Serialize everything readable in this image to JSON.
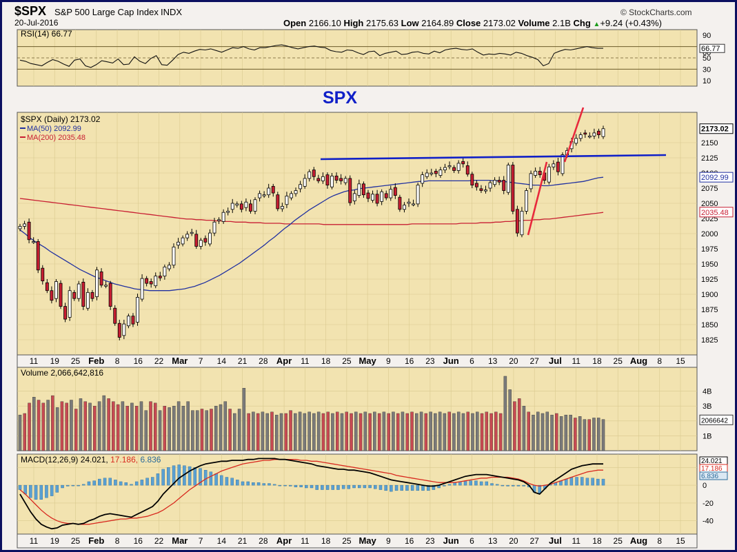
{
  "header": {
    "symbol": "$SPX",
    "name": "S&P 500 Large Cap Index",
    "exchange": "INDX",
    "date": "20-Jul-2016",
    "brand": "© StockCharts.com",
    "open_label": "Open",
    "open": "2166.10",
    "high_label": "High",
    "high": "2175.63",
    "low_label": "Low",
    "low": "2164.89",
    "close_label": "Close",
    "close": "2173.02",
    "volume_label": "Volume",
    "volume": "2.1B",
    "chg_label": "Chg",
    "chg": "+9.24 (+0.43%)",
    "chg_arrow": "▲"
  },
  "annotation": "SPX",
  "colors": {
    "panel_bg": "#f2e3b0",
    "outer_bg": "#f4f1ee",
    "frame": "#0c1060",
    "up": "#ffffff",
    "down": "#c81e32",
    "ma50": "#2030a0",
    "ma200": "#c81e32",
    "trendline": "#1020c8",
    "marker": "#e8283c",
    "vol_up": "#7a7a7a",
    "vol_down": "#c84a52",
    "hist": "#5aa0d2",
    "macd": "#000000",
    "signal": "#d8281e"
  },
  "x_ticks": [
    "11",
    "19",
    "25",
    "Feb",
    "8",
    "16",
    "22",
    "Mar",
    "7",
    "14",
    "21",
    "28",
    "Apr",
    "11",
    "18",
    "25",
    "May",
    "9",
    "16",
    "23",
    "Jun",
    "6",
    "13",
    "20",
    "27",
    "Jul",
    "11",
    "18",
    "25",
    "Aug",
    "8",
    "15"
  ],
  "chart_data": [
    {
      "type": "line",
      "title": "RSI(14) 66.77",
      "ylim": [
        0,
        100
      ],
      "y_ticks": [
        90,
        70,
        60,
        50,
        30,
        10
      ],
      "reference_lines": [
        70,
        50,
        30
      ],
      "last_value_label": "66.77",
      "values": [
        46,
        44,
        40,
        38,
        36,
        42,
        47,
        44,
        39,
        35,
        46,
        48,
        36,
        33,
        38,
        45,
        43,
        41,
        48,
        38,
        39,
        52,
        44,
        40,
        49,
        54,
        38,
        37,
        46,
        56,
        60,
        58,
        62,
        65,
        64,
        66,
        63,
        60,
        64,
        68,
        67,
        70,
        66,
        64,
        68,
        68,
        70,
        72,
        73,
        71,
        68,
        66,
        68,
        70,
        71,
        69,
        68,
        63,
        61,
        60,
        64,
        63,
        59,
        56,
        61,
        62,
        54,
        58,
        60,
        62,
        56,
        57,
        60,
        61,
        58,
        57,
        62,
        59,
        64,
        66,
        67,
        65,
        64,
        66,
        60,
        55,
        57,
        56,
        58,
        57,
        55,
        60,
        58,
        54,
        51,
        47,
        36,
        40,
        58,
        62,
        65,
        64,
        66,
        68,
        70,
        68,
        67,
        67
      ]
    },
    {
      "type": "candlestick",
      "title": "$SPX (Daily) 2173.02",
      "ylim": [
        1800,
        2200
      ],
      "y_ticks": [
        2150,
        2125,
        2100,
        2075,
        2050,
        2025,
        2000,
        1975,
        1950,
        1925,
        1900,
        1875,
        1850,
        1825
      ],
      "last_value_label": "2173.02",
      "ma50_label": "MA(50) 2092.99",
      "ma50_last": "2092.99",
      "ma200_label": "MA(200) 2035.48",
      "ma200_last": "2035.48",
      "close": [
        2012,
        2016,
        1990,
        1987,
        1940,
        1922,
        1906,
        1890,
        1921,
        1880,
        1859,
        1906,
        1893,
        1917,
        1880,
        1903,
        1893,
        1940,
        1915,
        1915,
        1880,
        1852,
        1829,
        1851,
        1864,
        1851,
        1895,
        1926,
        1918,
        1917,
        1930,
        1927,
        1945,
        1948,
        1978,
        1986,
        1993,
        1999,
        2002,
        1979,
        1989,
        1986,
        2001,
        2019,
        2023,
        2035,
        2037,
        2050,
        2049,
        2040,
        2052,
        2037,
        2056,
        2066,
        2064,
        2075,
        2067,
        2041,
        2045,
        2062,
        2066,
        2071,
        2081,
        2091,
        2102,
        2094,
        2087,
        2094,
        2080,
        2095,
        2088,
        2087,
        2091,
        2051,
        2066,
        2082,
        2064,
        2058,
        2065,
        2050,
        2069,
        2059,
        2073,
        2063,
        2040,
        2047,
        2052,
        2049,
        2080,
        2097,
        2100,
        2100,
        2099,
        2105,
        2109,
        2112,
        2104,
        2116,
        2115,
        2098,
        2080,
        2077,
        2071,
        2072,
        2084,
        2088,
        2085,
        2071,
        2113,
        2037,
        2001,
        2037,
        2071,
        2099,
        2103,
        2097,
        2088,
        2110,
        2115,
        2102,
        2130,
        2137,
        2152,
        2157,
        2163,
        2164,
        2161,
        2166,
        2163,
        2173
      ],
      "ma50": [
        2006,
        2000,
        1993,
        1987,
        1982,
        1977,
        1971,
        1966,
        1961,
        1956,
        1951,
        1946,
        1941,
        1937,
        1933,
        1929,
        1926,
        1923,
        1920,
        1917,
        1915,
        1913,
        1911,
        1909,
        1908,
        1907,
        1906,
        1906,
        1906,
        1906,
        1906,
        1907,
        1908,
        1909,
        1911,
        1913,
        1916,
        1919,
        1923,
        1927,
        1931,
        1936,
        1941,
        1946,
        1951,
        1957,
        1963,
        1969,
        1975,
        1981,
        1988,
        1994,
        2001,
        2008,
        2014,
        2021,
        2027,
        2033,
        2039,
        2044,
        2049,
        2054,
        2059,
        2063,
        2066,
        2069,
        2071,
        2072,
        2074,
        2075,
        2076,
        2077,
        2078,
        2079,
        2080,
        2081,
        2082,
        2083,
        2084,
        2085,
        2086,
        2086,
        2087,
        2087,
        2087,
        2087,
        2087,
        2087,
        2087,
        2087,
        2087,
        2088,
        2088,
        2088,
        2088,
        2087,
        2087,
        2086,
        2085,
        2084,
        2083,
        2082,
        2081,
        2080,
        2080,
        2079,
        2079,
        2080,
        2081,
        2082,
        2083,
        2084,
        2085,
        2086,
        2088,
        2090,
        2092,
        2093
      ],
      "ma200": [
        2058,
        2057,
        2056,
        2055,
        2054,
        2053,
        2052,
        2051,
        2050,
        2049,
        2048,
        2047,
        2046,
        2045,
        2044,
        2043,
        2042,
        2041,
        2040,
        2039,
        2038,
        2037,
        2036,
        2035,
        2034,
        2033,
        2032,
        2031,
        2030,
        2029,
        2028,
        2027,
        2026,
        2025,
        2024,
        2024,
        2023,
        2023,
        2022,
        2022,
        2021,
        2021,
        2020,
        2020,
        2019,
        2019,
        2019,
        2018,
        2018,
        2018,
        2017,
        2017,
        2017,
        2017,
        2016,
        2016,
        2016,
        2016,
        2016,
        2016,
        2016,
        2016,
        2015,
        2015,
        2015,
        2015,
        2015,
        2015,
        2015,
        2015,
        2015,
        2015,
        2015,
        2015,
        2015,
        2015,
        2015,
        2015,
        2015,
        2015,
        2016,
        2016,
        2016,
        2016,
        2016,
        2016,
        2016,
        2016,
        2016,
        2016,
        2017,
        2017,
        2017,
        2017,
        2018,
        2018,
        2018,
        2019,
        2019,
        2020,
        2020,
        2021,
        2021,
        2022,
        2022,
        2023,
        2023,
        2024,
        2024,
        2025,
        2026,
        2027,
        2028,
        2029,
        2030,
        2031,
        2032,
        2033,
        2034,
        2035
      ]
    },
    {
      "type": "bar",
      "title": "Volume 2,066,642,816",
      "y_ticks_labels": [
        "4B",
        "3B",
        "2B",
        "1B"
      ],
      "y_ticks_values": [
        4,
        3,
        2,
        1
      ],
      "last_value_label": "2066642",
      "values": [
        2.4,
        2.5,
        3.2,
        3.6,
        3.4,
        3.2,
        3.4,
        3.7,
        2.9,
        3.3,
        3.2,
        3.4,
        2.8,
        3.5,
        3.3,
        3.2,
        3.0,
        3.3,
        3.7,
        3.5,
        3.3,
        3.1,
        3.3,
        3.0,
        3.2,
        3.0,
        3.3,
        2.7,
        3.3,
        3.2,
        2.7,
        3.0,
        2.9,
        3.0,
        3.3,
        3.0,
        3.3,
        2.7,
        2.7,
        2.8,
        2.7,
        2.8,
        3.0,
        3.1,
        3.3,
        2.8,
        2.5,
        2.8,
        4.2,
        2.5,
        2.6,
        2.5,
        2.6,
        2.5,
        2.6,
        2.4,
        2.5,
        2.5,
        2.7,
        2.5,
        2.6,
        2.5,
        2.6,
        2.5,
        2.6,
        2.5,
        2.6,
        2.5,
        2.6,
        2.5,
        2.6,
        2.5,
        2.6,
        2.5,
        2.6,
        2.5,
        2.6,
        2.5,
        2.6,
        2.5,
        2.6,
        2.5,
        2.6,
        2.5,
        2.6,
        2.5,
        2.6,
        2.5,
        2.6,
        2.5,
        2.6,
        2.5,
        2.6,
        2.5,
        2.6,
        2.5,
        2.6,
        2.5,
        2.6,
        2.5,
        2.6,
        2.5,
        2.6,
        2.5,
        5.0,
        4.1,
        3.3,
        3.5,
        3.0,
        2.6,
        2.4,
        2.6,
        2.5,
        2.6,
        2.4,
        2.5,
        2.3,
        2.4,
        2.4,
        2.2,
        2.3,
        2.1,
        2.1,
        2.2,
        2.2,
        2.1
      ],
      "down_days": [
        1,
        2,
        4,
        5,
        7,
        9,
        10,
        12,
        14,
        16,
        19,
        20,
        21,
        23,
        25,
        28,
        29,
        31,
        39,
        41,
        45,
        49,
        51,
        54,
        57,
        58,
        65,
        66,
        68,
        70,
        71,
        73,
        75,
        77,
        79,
        81,
        83,
        84,
        87,
        92,
        96,
        99,
        100,
        101,
        102,
        103,
        106,
        107,
        109,
        115,
        119,
        122,
        126,
        128
      ]
    },
    {
      "type": "line",
      "title": "MACD(12,26,9) 24.021, 17.186, 6.836",
      "macd_label": "MACD(12,26,9) 24.021,",
      "signal_label": "17.186,",
      "hist_label": "6.836",
      "ylim": [
        -55,
        35
      ],
      "y_ticks": [
        20,
        0,
        -20,
        -40
      ],
      "last_macd": "24.021",
      "last_signal": "17.186",
      "last_hist": "6.836",
      "macd": [
        -10,
        -20,
        -30,
        -38,
        -44,
        -47,
        -49,
        -48,
        -45,
        -44,
        -43,
        -44,
        -43,
        -40,
        -38,
        -35,
        -33,
        -32,
        -33,
        -34,
        -35,
        -36,
        -33,
        -30,
        -27,
        -24,
        -18,
        -10,
        -4,
        2,
        8,
        12,
        16,
        19,
        22,
        24,
        25,
        26,
        27,
        27,
        28,
        28,
        28,
        29,
        29,
        30,
        30,
        30,
        30,
        29,
        29,
        28,
        27,
        26,
        25,
        24,
        22,
        21,
        20,
        19,
        18,
        18,
        17,
        17,
        16,
        15,
        14,
        12,
        10,
        8,
        6,
        5,
        4,
        3,
        2,
        1,
        0,
        -1,
        -1,
        0,
        2,
        4,
        6,
        8,
        10,
        11,
        12,
        12,
        12,
        11,
        10,
        9,
        8,
        7,
        6,
        4,
        0,
        -8,
        -10,
        -4,
        2,
        6,
        10,
        14,
        18,
        20,
        22,
        23,
        24,
        24,
        24
      ],
      "signal": [
        -5,
        -10,
        -16,
        -22,
        -28,
        -33,
        -37,
        -40,
        -42,
        -43,
        -43,
        -44,
        -44,
        -44,
        -43,
        -42,
        -41,
        -40,
        -39,
        -38,
        -38,
        -37,
        -37,
        -36,
        -35,
        -33,
        -31,
        -28,
        -24,
        -20,
        -15,
        -10,
        -5,
        -1,
        3,
        7,
        10,
        13,
        16,
        18,
        20,
        22,
        24,
        25,
        26,
        27,
        28,
        28,
        29,
        29,
        29,
        29,
        29,
        28,
        28,
        27,
        27,
        26,
        25,
        24,
        23,
        22,
        21,
        20,
        19,
        18,
        17,
        16,
        15,
        14,
        13,
        11,
        10,
        9,
        8,
        7,
        6,
        5,
        4,
        3,
        3,
        3,
        3,
        4,
        5,
        6,
        7,
        8,
        8,
        9,
        9,
        9,
        9,
        8,
        7,
        5,
        2,
        0,
        -1,
        0,
        1,
        3,
        5,
        7,
        9,
        11,
        13,
        15,
        16,
        17,
        17
      ]
    }
  ]
}
